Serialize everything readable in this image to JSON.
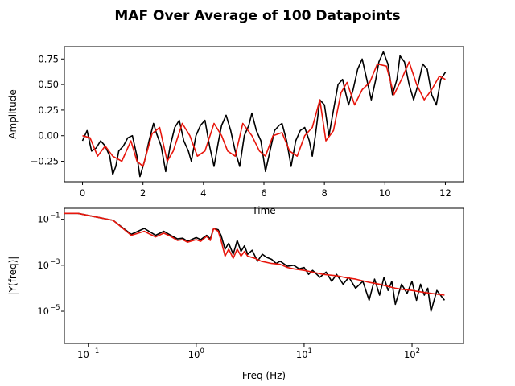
{
  "figure": {
    "title": "MAF Over Average of 100 Datapoints"
  },
  "chart_data": [
    {
      "type": "line",
      "xlabel": "Time",
      "ylabel": "Amplitude",
      "xlim": [
        -0.6,
        12.6
      ],
      "ylim": [
        -0.45,
        0.87
      ],
      "xticks": [
        0,
        2,
        4,
        6,
        8,
        10,
        12
      ],
      "yticks": [
        -0.25,
        0.0,
        0.25,
        0.5,
        0.75
      ],
      "xtick_labels": [
        "0",
        "2",
        "4",
        "6",
        "8",
        "10",
        "12"
      ],
      "ytick_labels": [
        "−0.25",
        "0.00",
        "0.25",
        "0.50",
        "0.75"
      ],
      "grid": false,
      "series": [
        {
          "color": "#000000",
          "x": [
            0.0,
            0.15,
            0.3,
            0.45,
            0.6,
            0.75,
            0.9,
            1.0,
            1.1,
            1.2,
            1.35,
            1.5,
            1.65,
            1.8,
            1.9,
            2.05,
            2.2,
            2.35,
            2.45,
            2.6,
            2.75,
            2.9,
            3.05,
            3.2,
            3.35,
            3.5,
            3.6,
            3.75,
            3.9,
            4.05,
            4.2,
            4.35,
            4.5,
            4.6,
            4.75,
            4.9,
            5.05,
            5.2,
            5.35,
            5.5,
            5.6,
            5.75,
            5.9,
            6.05,
            6.2,
            6.35,
            6.5,
            6.6,
            6.75,
            6.9,
            7.05,
            7.2,
            7.35,
            7.5,
            7.6,
            7.7,
            7.85,
            8.0,
            8.15,
            8.3,
            8.45,
            8.6,
            8.7,
            8.8,
            8.95,
            9.1,
            9.25,
            9.4,
            9.55,
            9.7,
            9.8,
            9.95,
            10.1,
            10.25,
            10.4,
            10.5,
            10.65,
            10.8,
            10.95,
            11.1,
            11.25,
            11.4,
            11.55,
            11.7,
            11.85,
            12.0
          ],
          "values": [
            -0.05,
            0.05,
            -0.15,
            -0.12,
            -0.05,
            -0.1,
            -0.2,
            -0.38,
            -0.3,
            -0.15,
            -0.1,
            -0.02,
            0.0,
            -0.2,
            -0.4,
            -0.25,
            -0.05,
            0.12,
            0.02,
            -0.1,
            -0.35,
            -0.1,
            0.08,
            0.15,
            -0.05,
            -0.15,
            -0.25,
            0.0,
            0.1,
            0.15,
            -0.1,
            -0.3,
            -0.05,
            0.1,
            0.2,
            0.05,
            -0.15,
            -0.3,
            0.0,
            0.1,
            0.22,
            0.05,
            -0.05,
            -0.35,
            -0.15,
            0.05,
            0.1,
            0.12,
            -0.05,
            -0.3,
            -0.05,
            0.05,
            0.08,
            -0.05,
            -0.2,
            0.0,
            0.35,
            0.3,
            0.0,
            0.25,
            0.5,
            0.55,
            0.42,
            0.3,
            0.45,
            0.65,
            0.75,
            0.55,
            0.35,
            0.55,
            0.72,
            0.82,
            0.7,
            0.4,
            0.55,
            0.78,
            0.72,
            0.5,
            0.35,
            0.5,
            0.7,
            0.65,
            0.4,
            0.3,
            0.55,
            0.62
          ]
        },
        {
          "color": "#e8160c",
          "x": [
            0.0,
            0.25,
            0.5,
            0.75,
            1.0,
            1.3,
            1.6,
            1.8,
            2.0,
            2.3,
            2.55,
            2.8,
            3.0,
            3.3,
            3.55,
            3.8,
            4.05,
            4.35,
            4.6,
            4.8,
            5.05,
            5.3,
            5.6,
            5.85,
            6.05,
            6.3,
            6.6,
            6.85,
            7.1,
            7.35,
            7.6,
            7.85,
            8.05,
            8.3,
            8.55,
            8.75,
            9.0,
            9.25,
            9.5,
            9.75,
            10.05,
            10.3,
            10.55,
            10.8,
            11.05,
            11.3,
            11.55,
            11.8,
            12.0
          ],
          "values": [
            0.0,
            -0.02,
            -0.2,
            -0.1,
            -0.2,
            -0.25,
            -0.05,
            -0.25,
            -0.3,
            0.02,
            0.08,
            -0.25,
            -0.15,
            0.12,
            0.0,
            -0.2,
            -0.15,
            0.12,
            0.0,
            -0.15,
            -0.2,
            0.12,
            0.0,
            -0.15,
            -0.2,
            0.0,
            0.03,
            -0.15,
            -0.2,
            0.0,
            0.08,
            0.35,
            -0.05,
            0.05,
            0.42,
            0.52,
            0.3,
            0.45,
            0.52,
            0.7,
            0.68,
            0.4,
            0.55,
            0.72,
            0.5,
            0.35,
            0.45,
            0.58,
            0.55
          ]
        }
      ]
    },
    {
      "type": "line",
      "xlabel": "Freq (Hz)",
      "ylabel": "|Y(freq)|",
      "xscale": "log",
      "yscale": "log",
      "xlim": [
        0.06,
        300
      ],
      "ylim": [
        4e-07,
        0.3
      ],
      "xticks": [
        0.1,
        1,
        10,
        100
      ],
      "yticks": [
        1e-05,
        0.001,
        0.1
      ],
      "xtick_labels": [
        "10",
        "10",
        "10",
        "10"
      ],
      "xtick_exponents": [
        "−1",
        "0",
        "1",
        "2"
      ],
      "ytick_labels": [
        "10",
        "10",
        "10"
      ],
      "ytick_exponents": [
        "−5",
        "−3",
        "−1"
      ],
      "grid": false,
      "series": [
        {
          "color": "#000000",
          "x": [
            0.06,
            0.08,
            0.17,
            0.25,
            0.33,
            0.42,
            0.5,
            0.58,
            0.67,
            0.75,
            0.83,
            1.0,
            1.1,
            1.25,
            1.35,
            1.45,
            1.6,
            1.7,
            1.85,
            2.0,
            2.2,
            2.4,
            2.6,
            2.8,
            3.0,
            3.3,
            3.7,
            4.1,
            4.5,
            5.0,
            5.5,
            6.0,
            7.0,
            8.0,
            9.0,
            10.0,
            11.0,
            12.0,
            14.0,
            16.0,
            18.0,
            20.0,
            23.0,
            26.0,
            30.0,
            35.0,
            40.0,
            45.0,
            50.0,
            55.0,
            60.0,
            65.0,
            70.0,
            80.0,
            90.0,
            100.0,
            110.0,
            120.0,
            130.0,
            140.0,
            150.0,
            170.0,
            200.0
          ],
          "values": [
            0.18,
            0.18,
            0.09,
            0.022,
            0.04,
            0.02,
            0.03,
            0.02,
            0.014,
            0.015,
            0.011,
            0.016,
            0.013,
            0.02,
            0.014,
            0.04,
            0.035,
            0.02,
            0.005,
            0.009,
            0.003,
            0.012,
            0.004,
            0.007,
            0.003,
            0.0045,
            0.0015,
            0.003,
            0.0022,
            0.0018,
            0.0012,
            0.0015,
            0.0009,
            0.001,
            0.0007,
            0.0008,
            0.0004,
            0.0006,
            0.0003,
            0.0005,
            0.0002,
            0.0004,
            0.00015,
            0.0003,
            0.0001,
            0.0002,
            3e-05,
            0.00025,
            5e-05,
            0.0003,
            8e-05,
            0.0002,
            2e-05,
            0.00015,
            6e-05,
            0.0002,
            3e-05,
            0.00015,
            5e-05,
            0.0001,
            1e-05,
            8e-05,
            3e-05
          ]
        },
        {
          "color": "#e8160c",
          "x": [
            0.06,
            0.08,
            0.17,
            0.25,
            0.33,
            0.42,
            0.5,
            0.58,
            0.67,
            0.75,
            0.83,
            1.0,
            1.1,
            1.25,
            1.35,
            1.45,
            1.6,
            1.7,
            1.85,
            2.0,
            2.2,
            2.4,
            2.6,
            2.8,
            3.0,
            3.5,
            4.0,
            5.0,
            6.0,
            7.0,
            8.0,
            10.0,
            12.0,
            15.0,
            20.0,
            25.0,
            30.0,
            40.0,
            50.0,
            60.0,
            70.0,
            80.0,
            100.0,
            120.0,
            150.0,
            200.0
          ],
          "values": [
            0.18,
            0.18,
            0.09,
            0.02,
            0.03,
            0.017,
            0.025,
            0.018,
            0.012,
            0.013,
            0.01,
            0.013,
            0.011,
            0.018,
            0.012,
            0.04,
            0.03,
            0.012,
            0.0025,
            0.005,
            0.002,
            0.005,
            0.0025,
            0.004,
            0.0025,
            0.002,
            0.0015,
            0.0012,
            0.0011,
            0.0008,
            0.0007,
            0.0006,
            0.0005,
            0.0004,
            0.00035,
            0.00028,
            0.00025,
            0.00018,
            0.00015,
            0.00012,
            0.0001,
            9e-05,
            8e-05,
            7e-05,
            6e-05,
            5e-05
          ]
        }
      ]
    }
  ]
}
